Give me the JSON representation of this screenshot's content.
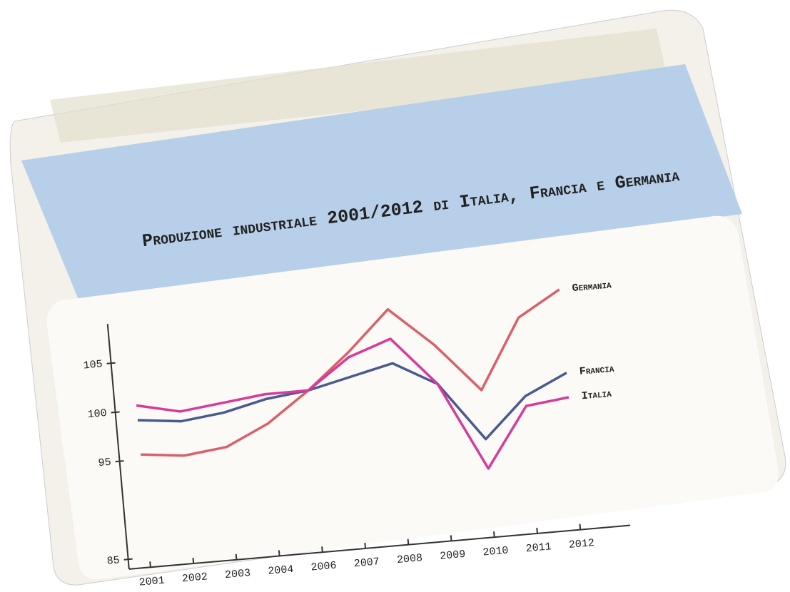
{
  "chart_data": {
    "type": "line",
    "title": "Produzione industriale 2001/2012 di Italia, Francia e Germania",
    "categories": [
      "2001",
      "2002",
      "2003",
      "2004",
      "2006",
      "2007",
      "2008",
      "2009",
      "2010",
      "2011",
      "2012"
    ],
    "series": [
      {
        "name": "Germania",
        "color": "#d9606a",
        "values": [
          95.5,
          95,
          95.5,
          97.5,
          100.5,
          104,
          108,
          104,
          99,
          106,
          108.5
        ]
      },
      {
        "name": "Francia",
        "color": "#4a5a90",
        "values": [
          99,
          98.5,
          99,
          100,
          100.5,
          101.5,
          102.5,
          100,
          94,
          98,
          100
        ]
      },
      {
        "name": "Italia",
        "color": "#d63a9a",
        "values": [
          100.5,
          99.5,
          100,
          100.5,
          100.5,
          103.5,
          105,
          100,
          91,
          97,
          97.5
        ]
      }
    ],
    "ylim": [
      84,
      109
    ],
    "yticks": [
      85,
      95,
      100,
      105
    ]
  }
}
